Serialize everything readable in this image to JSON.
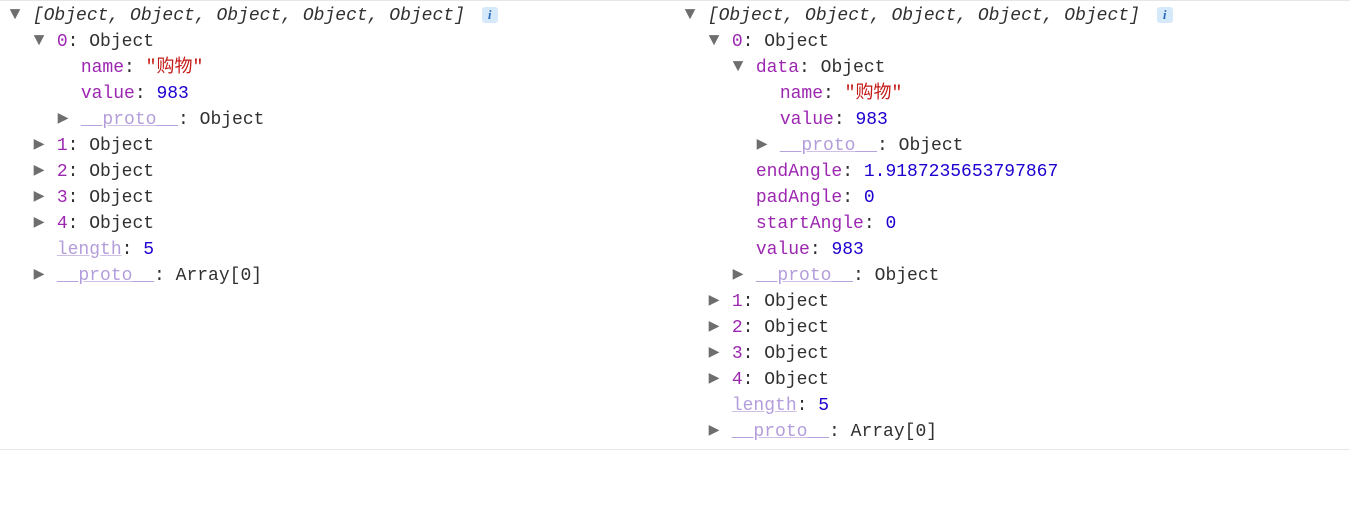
{
  "glyphs": {
    "expanded": "▼",
    "collapsed": "▶",
    "info": "i"
  },
  "colors": {
    "key": "#9c27b0",
    "dim_key": "#b39ddb",
    "string": "#c41a16",
    "number": "#1c00cf",
    "text": "#303030",
    "toggle": "#6e6e6e",
    "info_bg": "#d6e9fb",
    "info_fg": "#2a6bbf",
    "border": "#e6e6e6",
    "background": "#ffffff"
  },
  "left": {
    "header": "[Object, Object, Object, Object, Object]",
    "item0": {
      "index_label": "0",
      "type": "Object",
      "name_key": "name",
      "name_val": "\"购物\"",
      "value_key": "value",
      "value_val": "983",
      "proto_key": "__proto__",
      "proto_val": "Object"
    },
    "items": [
      {
        "index_label": "1",
        "type": "Object"
      },
      {
        "index_label": "2",
        "type": "Object"
      },
      {
        "index_label": "3",
        "type": "Object"
      },
      {
        "index_label": "4",
        "type": "Object"
      }
    ],
    "length_key": "length",
    "length_val": "5",
    "proto_key": "__proto__",
    "proto_val": "Array[0]"
  },
  "right": {
    "header": "[Object, Object, Object, Object, Object]",
    "item0": {
      "index_label": "0",
      "type": "Object",
      "data_key": "data",
      "data_type": "Object",
      "data_name_key": "name",
      "data_name_val": "\"购物\"",
      "data_value_key": "value",
      "data_value_val": "983",
      "data_proto_key": "__proto__",
      "data_proto_val": "Object",
      "endAngle_key": "endAngle",
      "endAngle_val": "1.9187235653797867",
      "padAngle_key": "padAngle",
      "padAngle_val": "0",
      "startAngle_key": "startAngle",
      "startAngle_val": "0",
      "value_key": "value",
      "value_val": "983",
      "proto_key": "__proto__",
      "proto_val": "Object"
    },
    "items": [
      {
        "index_label": "1",
        "type": "Object"
      },
      {
        "index_label": "2",
        "type": "Object"
      },
      {
        "index_label": "3",
        "type": "Object"
      },
      {
        "index_label": "4",
        "type": "Object"
      }
    ],
    "length_key": "length",
    "length_val": "5",
    "proto_key": "__proto__",
    "proto_val": "Array[0]"
  }
}
